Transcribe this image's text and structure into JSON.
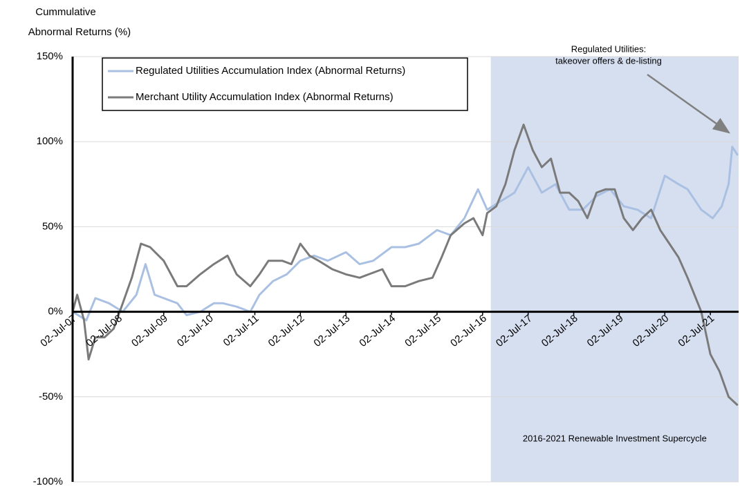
{
  "chart_data": {
    "type": "line",
    "y_label": [
      "Cummulative",
      "Abnormal Returns (%)"
    ],
    "xlim": [
      2007.5,
      2022.12
    ],
    "ylim": [
      -100,
      150
    ],
    "yticks": [
      {
        "value": -100,
        "label": "-100%"
      },
      {
        "value": -50,
        "label": "-50%"
      },
      {
        "value": 0,
        "label": "0%"
      },
      {
        "value": 50,
        "label": "50%"
      },
      {
        "value": 100,
        "label": "100%"
      },
      {
        "value": 150,
        "label": "150%"
      }
    ],
    "xticks": [
      {
        "value": 2007.5,
        "label": "02-Jul-07"
      },
      {
        "value": 2008.5,
        "label": "02-Jul-08"
      },
      {
        "value": 2009.5,
        "label": "02-Jul-09"
      },
      {
        "value": 2010.5,
        "label": "02-Jul-10"
      },
      {
        "value": 2011.5,
        "label": "02-Jul-11"
      },
      {
        "value": 2012.5,
        "label": "02-Jul-12"
      },
      {
        "value": 2013.5,
        "label": "02-Jul-13"
      },
      {
        "value": 2014.5,
        "label": "02-Jul-14"
      },
      {
        "value": 2015.5,
        "label": "02-Jul-15"
      },
      {
        "value": 2016.5,
        "label": "02-Jul-16"
      },
      {
        "value": 2017.5,
        "label": "02-Jul-17"
      },
      {
        "value": 2018.5,
        "label": "02-Jul-18"
      },
      {
        "value": 2019.5,
        "label": "02-Jul-19"
      },
      {
        "value": 2020.5,
        "label": "02-Jul-20"
      },
      {
        "value": 2021.5,
        "label": "02-Jul-21"
      }
    ],
    "grid": true,
    "legend": "top-left",
    "shaded_region": {
      "x": [
        2016.68,
        2022.12
      ],
      "color": "#d6dff0",
      "label": "2016-2021 Renewable Investment Supercycle"
    },
    "annotation": {
      "text": [
        "Regulated Utilities:",
        "takeover offers & de-listing"
      ]
    },
    "series": [
      {
        "name": "Regulated Utilities Accumulation Index (Abnormal Returns)",
        "color": "#a9c0e2",
        "x": [
          2007.5,
          2007.8,
          2008.0,
          2008.3,
          2008.6,
          2008.9,
          2009.1,
          2009.3,
          2009.5,
          2009.8,
          2010.0,
          2010.3,
          2010.6,
          2010.8,
          2011.1,
          2011.4,
          2011.6,
          2011.9,
          2012.2,
          2012.5,
          2012.8,
          2013.1,
          2013.5,
          2013.8,
          2014.1,
          2014.5,
          2014.8,
          2015.1,
          2015.5,
          2015.8,
          2016.1,
          2016.4,
          2016.6,
          2016.9,
          2017.2,
          2017.5,
          2017.8,
          2018.1,
          2018.4,
          2018.7,
          2019.0,
          2019.3,
          2019.6,
          2019.9,
          2020.2,
          2020.5,
          2020.8,
          2021.0,
          2021.3,
          2021.55,
          2021.75,
          2021.9,
          2021.98,
          2022.1
        ],
        "values": [
          0,
          -5,
          8,
          5,
          0,
          10,
          28,
          10,
          8,
          5,
          -2,
          0,
          5,
          5,
          3,
          0,
          10,
          18,
          22,
          30,
          33,
          30,
          35,
          28,
          30,
          38,
          38,
          40,
          48,
          45,
          55,
          72,
          60,
          65,
          70,
          85,
          70,
          75,
          60,
          60,
          68,
          72,
          62,
          60,
          55,
          80,
          75,
          72,
          60,
          55,
          62,
          75,
          97,
          92
        ]
      },
      {
        "name": "Merchant Utility Accumulation Index (Abnormal Returns)",
        "color": "#7a7a7a",
        "x": [
          2007.5,
          2007.6,
          2007.75,
          2007.85,
          2008.0,
          2008.2,
          2008.4,
          2008.6,
          2008.8,
          2009.0,
          2009.2,
          2009.5,
          2009.8,
          2010.0,
          2010.3,
          2010.6,
          2010.9,
          2011.1,
          2011.4,
          2011.6,
          2011.8,
          2012.1,
          2012.3,
          2012.5,
          2012.7,
          2012.9,
          2013.2,
          2013.5,
          2013.8,
          2014.0,
          2014.3,
          2014.5,
          2014.8,
          2015.1,
          2015.4,
          2015.6,
          2015.8,
          2016.1,
          2016.3,
          2016.5,
          2016.6,
          2016.8,
          2017.0,
          2017.2,
          2017.4,
          2017.6,
          2017.8,
          2018.0,
          2018.2,
          2018.4,
          2018.6,
          2018.8,
          2019.0,
          2019.2,
          2019.4,
          2019.6,
          2019.8,
          2020.0,
          2020.2,
          2020.4,
          2020.6,
          2020.8,
          2021.0,
          2021.3,
          2021.5,
          2021.7,
          2021.9,
          2022.1
        ],
        "values": [
          0,
          10,
          -5,
          -28,
          -15,
          -15,
          -10,
          5,
          20,
          40,
          38,
          30,
          15,
          15,
          22,
          28,
          33,
          22,
          15,
          22,
          30,
          30,
          28,
          40,
          33,
          30,
          25,
          22,
          20,
          22,
          25,
          15,
          15,
          18,
          20,
          32,
          45,
          52,
          55,
          45,
          58,
          62,
          75,
          95,
          110,
          95,
          85,
          90,
          70,
          70,
          65,
          55,
          70,
          72,
          72,
          55,
          48,
          55,
          60,
          48,
          40,
          32,
          20,
          0,
          -25,
          -35,
          -50,
          -55
        ]
      }
    ]
  }
}
